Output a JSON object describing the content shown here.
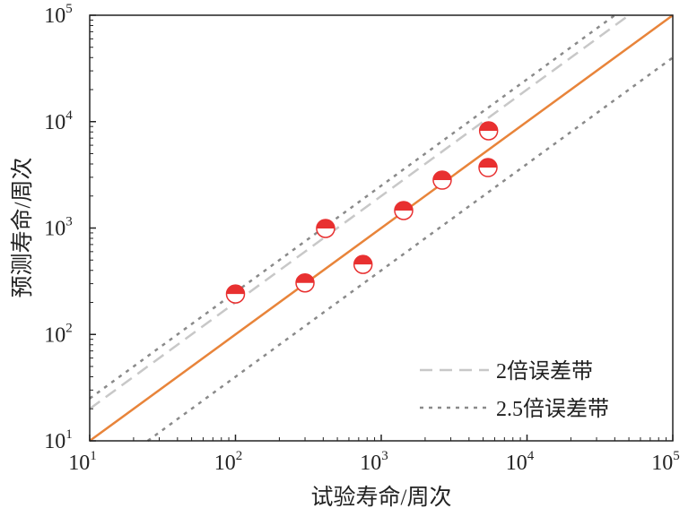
{
  "chart_data": {
    "type": "scatter",
    "xscale": "log",
    "yscale": "log",
    "xlim": [
      10,
      100000
    ],
    "ylim": [
      10,
      100000
    ],
    "xlabel": "试验寿命/周次",
    "ylabel": "预测寿命/周次",
    "ticks": [
      {
        "base": "10",
        "exp": "1",
        "value": 10
      },
      {
        "base": "10",
        "exp": "2",
        "value": 100
      },
      {
        "base": "10",
        "exp": "3",
        "value": 1000
      },
      {
        "base": "10",
        "exp": "4",
        "value": 10000
      },
      {
        "base": "10",
        "exp": "5",
        "value": 100000
      }
    ],
    "points": [
      {
        "x": 100,
        "y": 240
      },
      {
        "x": 300,
        "y": 305
      },
      {
        "x": 415,
        "y": 990
      },
      {
        "x": 750,
        "y": 455
      },
      {
        "x": 1425,
        "y": 1460
      },
      {
        "x": 2620,
        "y": 2820
      },
      {
        "x": 5400,
        "y": 3700
      },
      {
        "x": 5450,
        "y": 8200
      }
    ],
    "lines": [
      {
        "name": "y=x",
        "factor": 1,
        "color": "#e8843a",
        "style": "solid"
      },
      {
        "name": "2倍误差带",
        "factor": 2,
        "color": "#c8c8c8",
        "style": "dashed"
      },
      {
        "name": "2.5倍误差带",
        "factor": 2.5,
        "color": "#8a8a8a",
        "style": "dotted"
      },
      {
        "name": "2.5倍误差带",
        "factor": 0.4,
        "color": "#8a8a8a",
        "style": "dotted"
      }
    ],
    "legend": {
      "placement": "bottom-right",
      "entries": [
        {
          "label": "2倍误差带",
          "style": "dashed",
          "color": "#c8c8c8"
        },
        {
          "label": "2.5倍误差带",
          "style": "dotted",
          "color": "#8a8a8a"
        }
      ]
    },
    "marker_color": "#e83030"
  }
}
